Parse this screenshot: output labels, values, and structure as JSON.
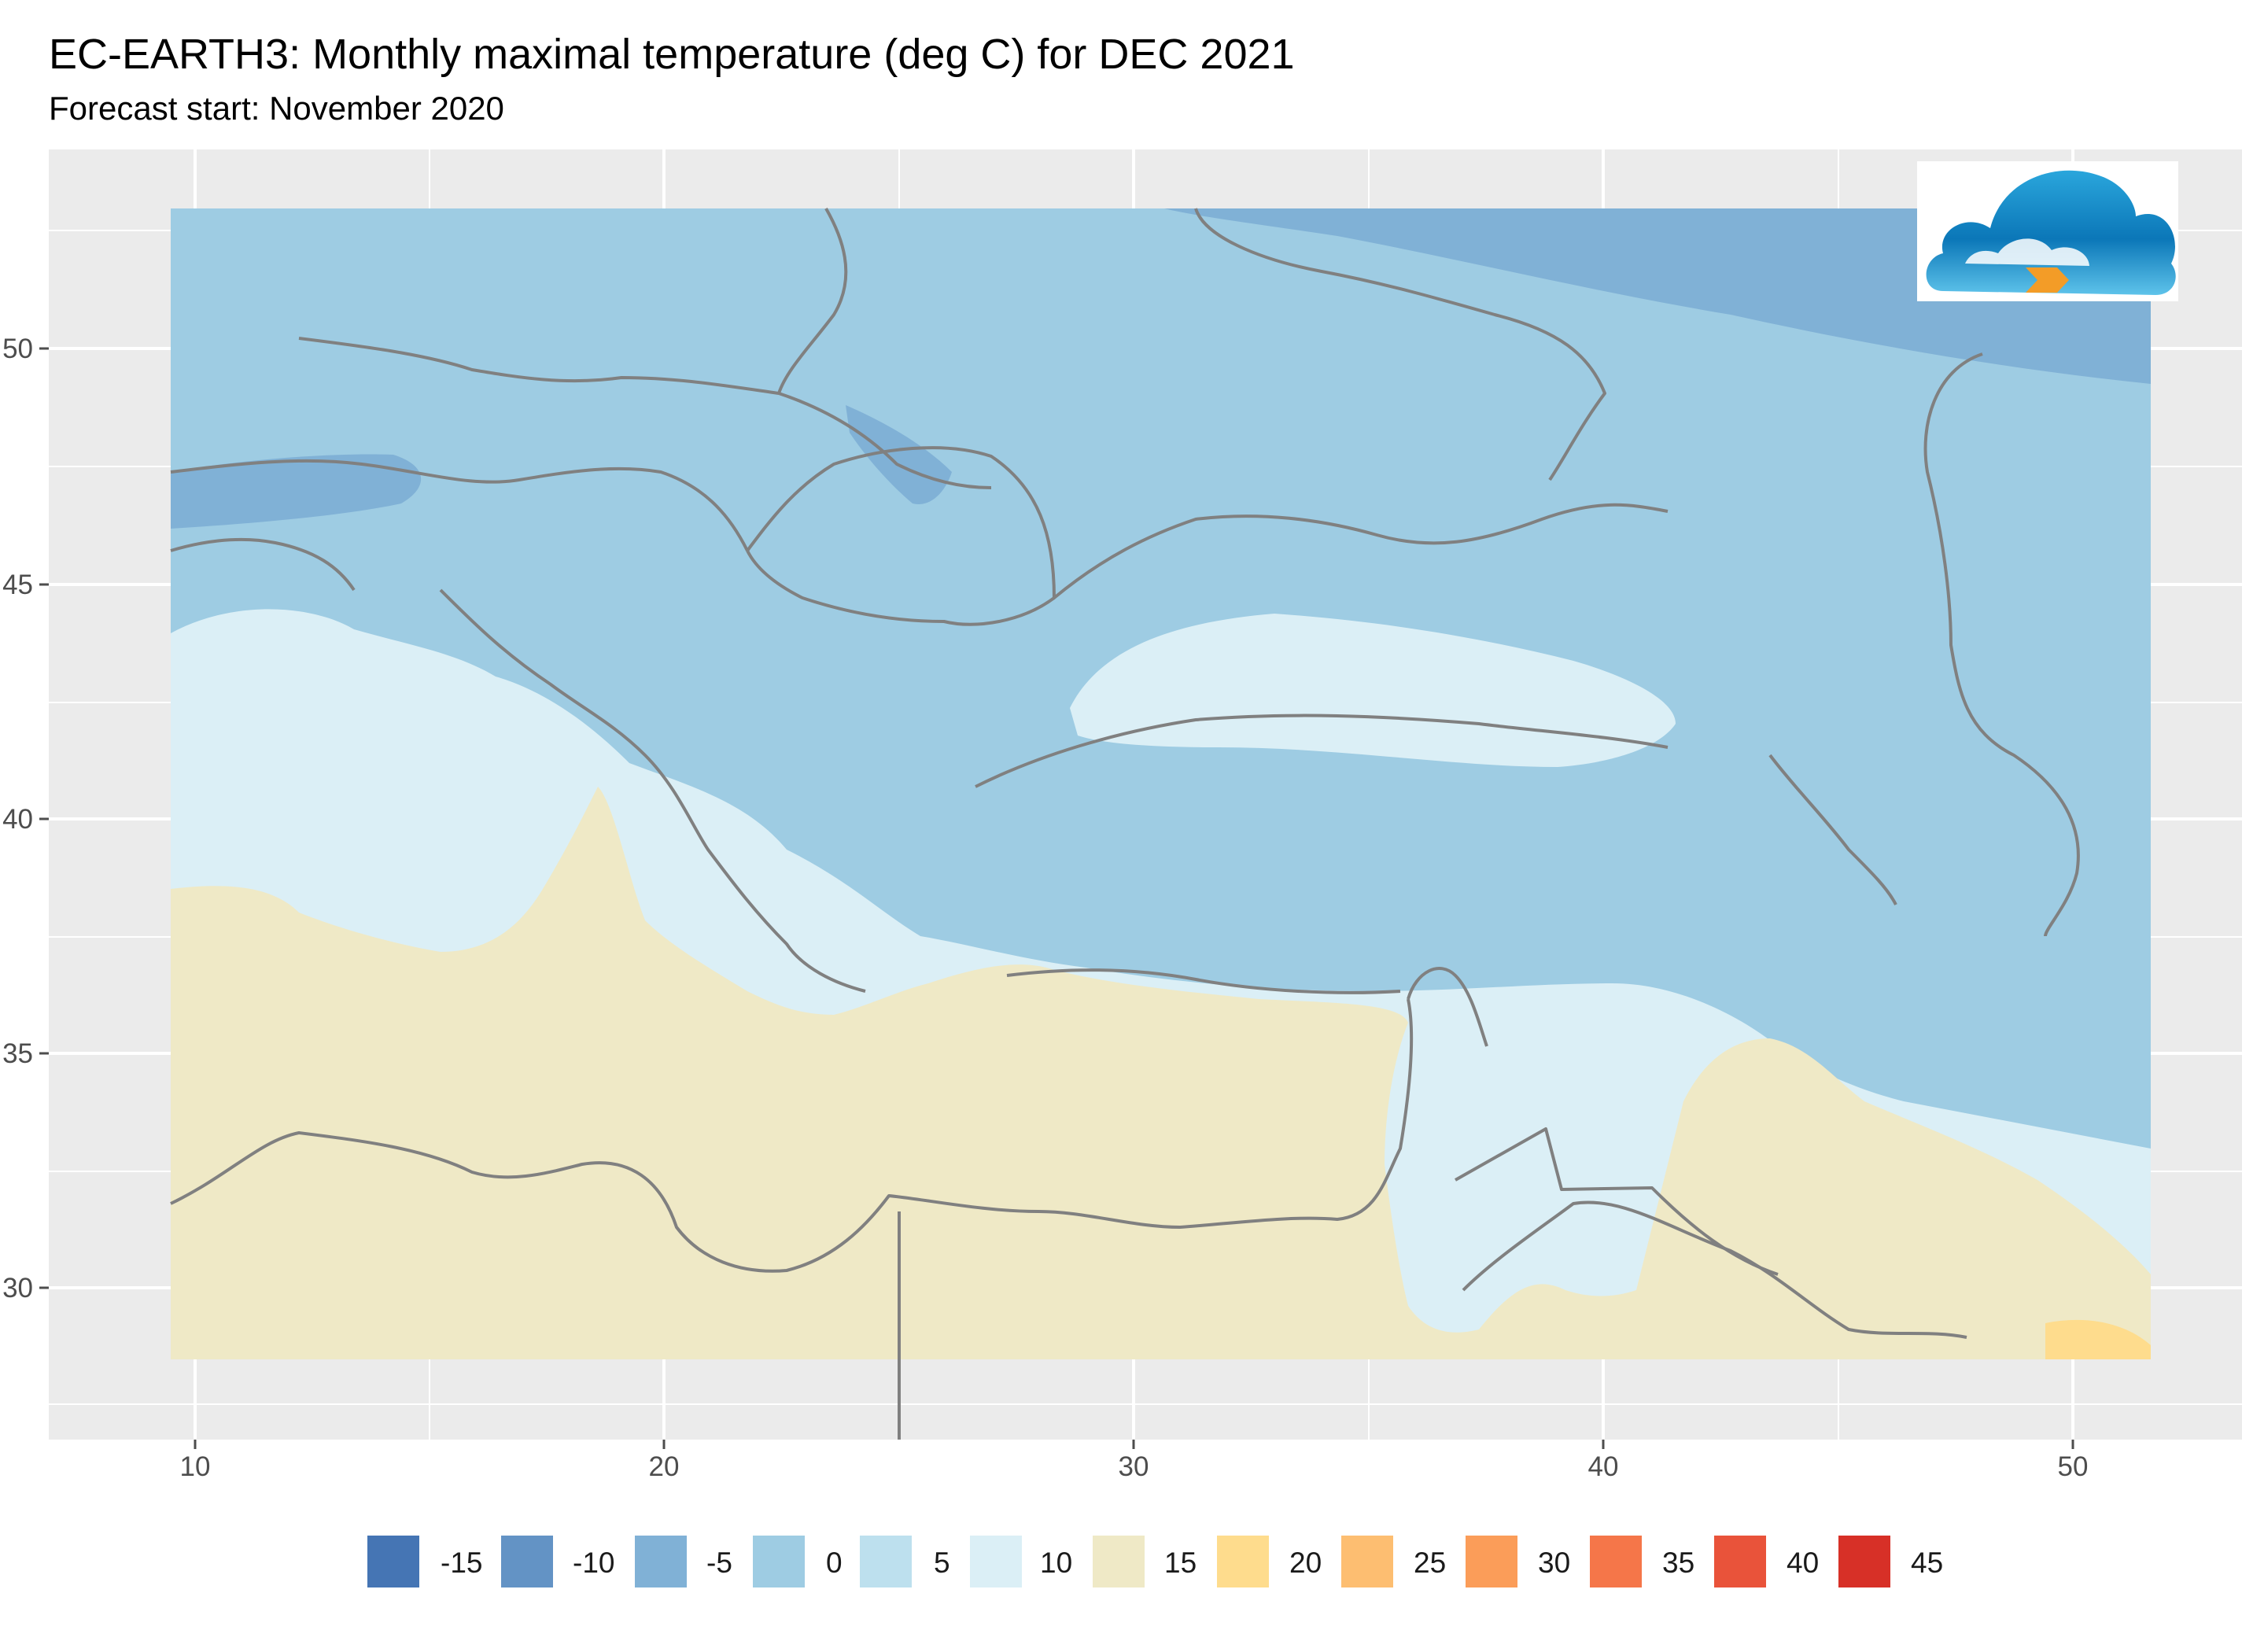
{
  "title": "EC-EARTH3: Monthly maximal temperature (deg C) for DEC 2021",
  "subtitle": "Forecast start: November 2020",
  "logo": {
    "icon": "cloud-logo-icon"
  },
  "map": {
    "x_axis": {
      "ticks": [
        "10",
        "20",
        "30",
        "40",
        "50"
      ]
    },
    "y_axis": {
      "ticks": [
        "30",
        "35",
        "40",
        "45",
        "50"
      ]
    },
    "background": "#ebebeb",
    "grid_color": "#ffffff",
    "border_color": "#808080"
  },
  "legend": [
    {
      "label": "-15",
      "color": "#4575b4"
    },
    {
      "label": "-10",
      "color": "#6393c5"
    },
    {
      "label": "-5",
      "color": "#80b1d6"
    },
    {
      "label": "0",
      "color": "#9ecce3"
    },
    {
      "label": "5",
      "color": "#bde0ee"
    },
    {
      "label": "10",
      "color": "#dbeff6"
    },
    {
      "label": "15",
      "color": "#efe9c6"
    },
    {
      "label": "20",
      "color": "#fedc8d"
    },
    {
      "label": "25",
      "color": "#fdbe71"
    },
    {
      "label": "30",
      "color": "#fb9d59"
    },
    {
      "label": "35",
      "color": "#f57649"
    },
    {
      "label": "40",
      "color": "#e9533a"
    },
    {
      "label": "45",
      "color": "#d73027"
    }
  ]
}
